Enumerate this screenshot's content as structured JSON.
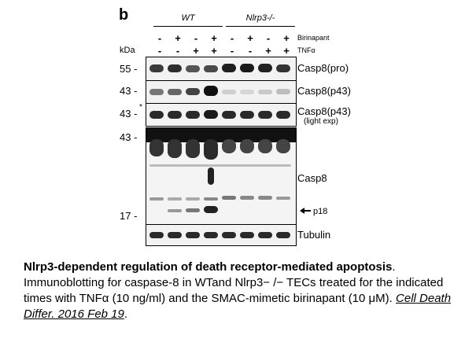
{
  "panel_letter": "b",
  "groups": {
    "wt": "WT",
    "ko": "Nlrp3-/-"
  },
  "treatments": {
    "rows": [
      {
        "label": "Birinapant",
        "signs": [
          "-",
          "+",
          "-",
          "+",
          "-",
          "+",
          "-",
          "+"
        ]
      },
      {
        "label": "TNFα",
        "signs": [
          "-",
          "-",
          "+",
          "+",
          "-",
          "-",
          "+",
          "+"
        ]
      }
    ]
  },
  "kda_label": "kDa",
  "blots": [
    {
      "mw": "55 -",
      "label": "Casp8(pro)",
      "sublabel": ""
    },
    {
      "mw": "43 -",
      "label": "Casp8(p43)",
      "sublabel": ""
    },
    {
      "mw": "43 -",
      "label": "Casp8(p43)",
      "sublabel": "(light exp)",
      "star": "*"
    },
    {
      "mw_top": "43 -",
      "mw_bottom": "17 -",
      "label": "Casp8",
      "arrow_label": "p18"
    },
    {
      "label": "Tubulin"
    }
  ],
  "caption": {
    "title": "Nlrp3-dependent regulation of death receptor-mediated apoptosis",
    "body": ". Immunoblotting for caspase-8 in WTand Nlrp3− /− TECs treated for the indicated times with TNFα (10 ng/ml) and the SMAC-mimetic birinapant (10 μM). ",
    "citation": "Cell Death Differ. 2016 Feb 19",
    "end": "."
  }
}
